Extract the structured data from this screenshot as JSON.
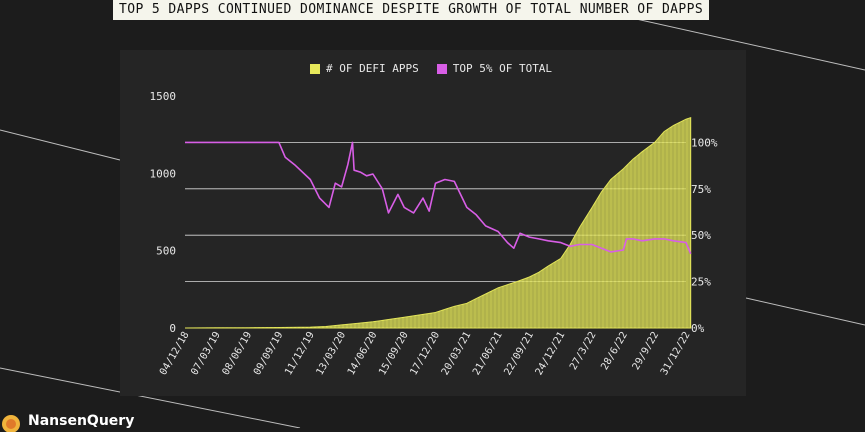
{
  "title": "TOP 5 DAPPS CONTINUED DOMINANCE DESPITE GROWTH OF TOTAL NUMBER OF DAPPS",
  "brand": "NansenQuery",
  "colors": {
    "background": "#1c1c1c",
    "panel": "#252525",
    "defi_apps": "#e6e85a",
    "top5": "#d85ee6",
    "grid": "#d9d9d9",
    "text": "#e8e8e8"
  },
  "chart_data": {
    "type": "area+line",
    "legend": [
      "# OF DEFI APPS",
      "TOP 5% OF TOTAL"
    ],
    "legend_position": "top-center",
    "grid": true,
    "x_ticks": [
      "04/12/18",
      "07/03/19",
      "08/06/19",
      "09/09/19",
      "11/12/19",
      "13/03/20",
      "14/06/20",
      "15/09/20",
      "17/12/20",
      "20/03/21",
      "21/06/21",
      "22/09/21",
      "24/12/21",
      "27/3/22",
      "28/6/22",
      "29/9/22",
      "31/12/22"
    ],
    "y_left": {
      "ticks": [
        0,
        500,
        1000,
        1500
      ],
      "range": [
        0,
        1500
      ]
    },
    "y_right": {
      "ticks": [
        "0%",
        "25%",
        "50%",
        "75%",
        "100%"
      ],
      "range": [
        0,
        125
      ]
    },
    "series": [
      {
        "name": "# OF DEFI APPS",
        "kind": "area",
        "axis": "left",
        "points": [
          [
            0,
            0
          ],
          [
            1,
            1
          ],
          [
            2,
            2
          ],
          [
            3,
            3
          ],
          [
            4,
            6
          ],
          [
            4.5,
            10
          ],
          [
            5,
            20
          ],
          [
            5.5,
            30
          ],
          [
            6,
            40
          ],
          [
            6.5,
            55
          ],
          [
            7,
            70
          ],
          [
            7.5,
            85
          ],
          [
            8,
            100
          ],
          [
            8.3,
            120
          ],
          [
            8.6,
            140
          ],
          [
            9,
            160
          ],
          [
            9.3,
            190
          ],
          [
            9.6,
            220
          ],
          [
            10,
            260
          ],
          [
            10.3,
            280
          ],
          [
            10.6,
            300
          ],
          [
            11,
            330
          ],
          [
            11.3,
            360
          ],
          [
            11.6,
            400
          ],
          [
            12,
            450
          ],
          [
            12.3,
            540
          ],
          [
            12.6,
            650
          ],
          [
            13,
            780
          ],
          [
            13.3,
            880
          ],
          [
            13.6,
            960
          ],
          [
            14,
            1030
          ],
          [
            14.3,
            1090
          ],
          [
            14.6,
            1140
          ],
          [
            15,
            1200
          ],
          [
            15.3,
            1270
          ],
          [
            15.6,
            1310
          ],
          [
            16,
            1350
          ],
          [
            16.15,
            1360
          ]
        ]
      },
      {
        "name": "TOP 5% OF TOTAL",
        "kind": "line",
        "axis": "right",
        "points": [
          [
            0,
            100
          ],
          [
            2.5,
            100
          ],
          [
            3,
            100
          ],
          [
            3.2,
            92
          ],
          [
            3.5,
            88
          ],
          [
            4,
            80
          ],
          [
            4.3,
            70
          ],
          [
            4.6,
            65
          ],
          [
            4.8,
            78
          ],
          [
            5,
            76
          ],
          [
            5.2,
            88
          ],
          [
            5.35,
            100
          ],
          [
            5.4,
            85
          ],
          [
            5.6,
            84
          ],
          [
            5.8,
            82
          ],
          [
            6,
            83
          ],
          [
            6.3,
            75
          ],
          [
            6.5,
            62
          ],
          [
            6.8,
            72
          ],
          [
            7,
            65
          ],
          [
            7.3,
            62
          ],
          [
            7.6,
            70
          ],
          [
            7.8,
            63
          ],
          [
            8,
            78
          ],
          [
            8.3,
            80
          ],
          [
            8.6,
            79
          ],
          [
            9,
            65
          ],
          [
            9.3,
            61
          ],
          [
            9.6,
            55
          ],
          [
            10,
            52
          ],
          [
            10.3,
            46
          ],
          [
            10.5,
            43
          ],
          [
            10.7,
            51
          ],
          [
            11,
            49
          ],
          [
            11.3,
            48
          ],
          [
            11.6,
            47
          ],
          [
            12,
            46
          ],
          [
            12.3,
            44
          ],
          [
            12.6,
            45
          ],
          [
            13,
            45
          ],
          [
            13.3,
            43
          ],
          [
            13.6,
            41
          ],
          [
            14,
            42
          ],
          [
            14.1,
            48
          ],
          [
            14.3,
            48
          ],
          [
            14.6,
            47
          ],
          [
            15,
            48
          ],
          [
            15.3,
            48
          ],
          [
            15.6,
            47
          ],
          [
            16,
            46
          ],
          [
            16.15,
            40
          ]
        ]
      }
    ]
  }
}
